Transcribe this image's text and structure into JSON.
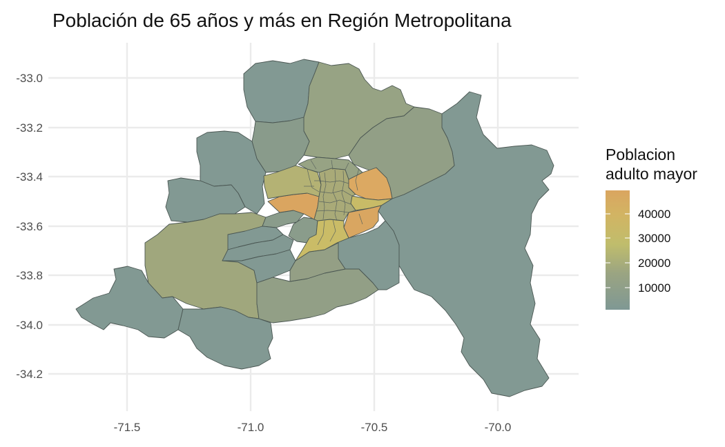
{
  "title": "Población de 65 años y más en Región Metropolitana",
  "axes": {
    "x_ticks": [
      "-71.5",
      "-71.0",
      "-70.5",
      "-70.0"
    ],
    "y_ticks": [
      "-33.0",
      "-33.2",
      "-33.4",
      "-33.6",
      "-33.8",
      "-34.0",
      "-34.2"
    ]
  },
  "legend": {
    "title_line1": "Poblacion",
    "title_line2": "adulto mayor",
    "labels": [
      "40000",
      "30000",
      "20000",
      "10000"
    ],
    "colors": {
      "low": "#7f9894",
      "mid": "#c0bd6c",
      "high": "#daa560"
    }
  },
  "chart_data": {
    "type": "choropleth",
    "title": "Población de 65 años y más en Región Metropolitana",
    "xlabel": "",
    "ylabel": "",
    "xlim": [
      -71.75,
      -69.75
    ],
    "ylim": [
      -34.35,
      -32.85
    ],
    "x_ticks": [
      -71.5,
      -71.0,
      -70.5,
      -70.0
    ],
    "y_ticks": [
      -33.0,
      -33.2,
      -33.4,
      -33.6,
      -33.8,
      -34.0,
      -34.2
    ],
    "fill_scale": {
      "min": 0,
      "max": 48000,
      "breaks": [
        10000,
        20000,
        30000,
        40000
      ]
    },
    "grid": true,
    "legend_position": "right"
  }
}
